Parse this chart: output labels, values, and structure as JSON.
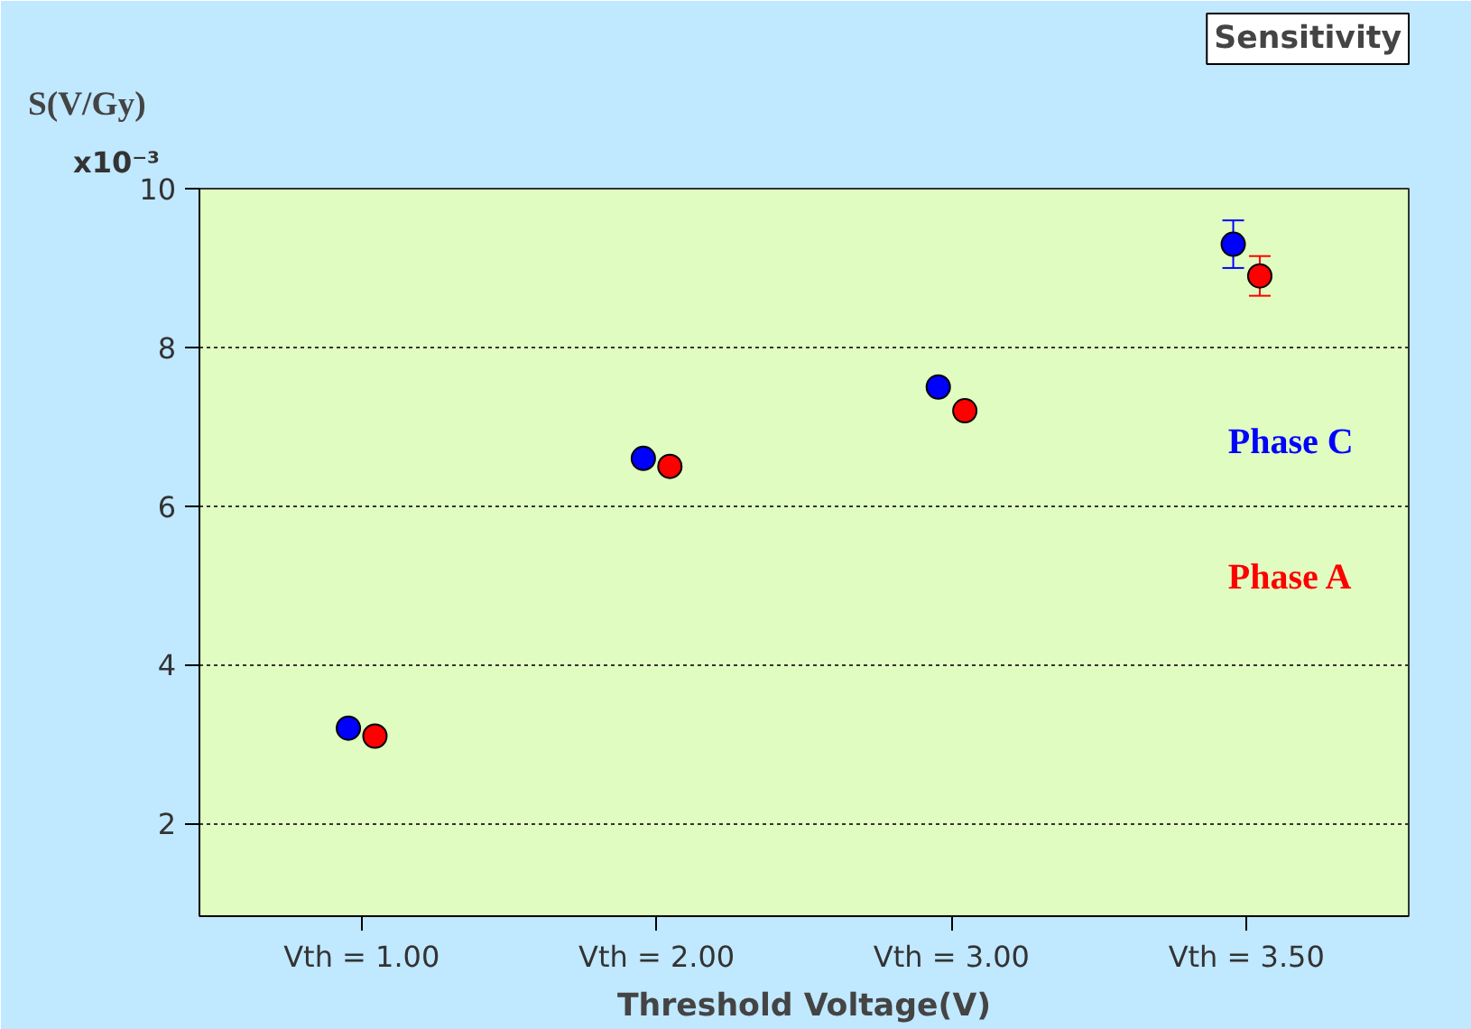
{
  "chart_data": {
    "type": "scatter",
    "title": "Sensitivity",
    "ylabel": "S(V/Gy)",
    "xlabel": "Threshold Voltage(V)",
    "categories": [
      "Vth = 1.00",
      "Vth = 2.00",
      "Vth = 3.00",
      "Vth = 3.50"
    ],
    "series": [
      {
        "name": "Phase C",
        "color": "#0000ff",
        "values": [
          3.2,
          6.6,
          7.5,
          9.3
        ],
        "errors": [
          null,
          null,
          null,
          0.3
        ]
      },
      {
        "name": "Phase A",
        "color": "#ff0000",
        "values": [
          3.1,
          6.5,
          7.2,
          8.9
        ],
        "errors": [
          null,
          null,
          null,
          0.25
        ]
      }
    ],
    "ylim": [
      0.83,
      10
    ],
    "yticks": [
      2,
      4,
      6,
      8,
      10
    ],
    "annotations": [
      "x10⁻³"
    ],
    "grid": "y",
    "legend": "right",
    "marker": "circle"
  }
}
